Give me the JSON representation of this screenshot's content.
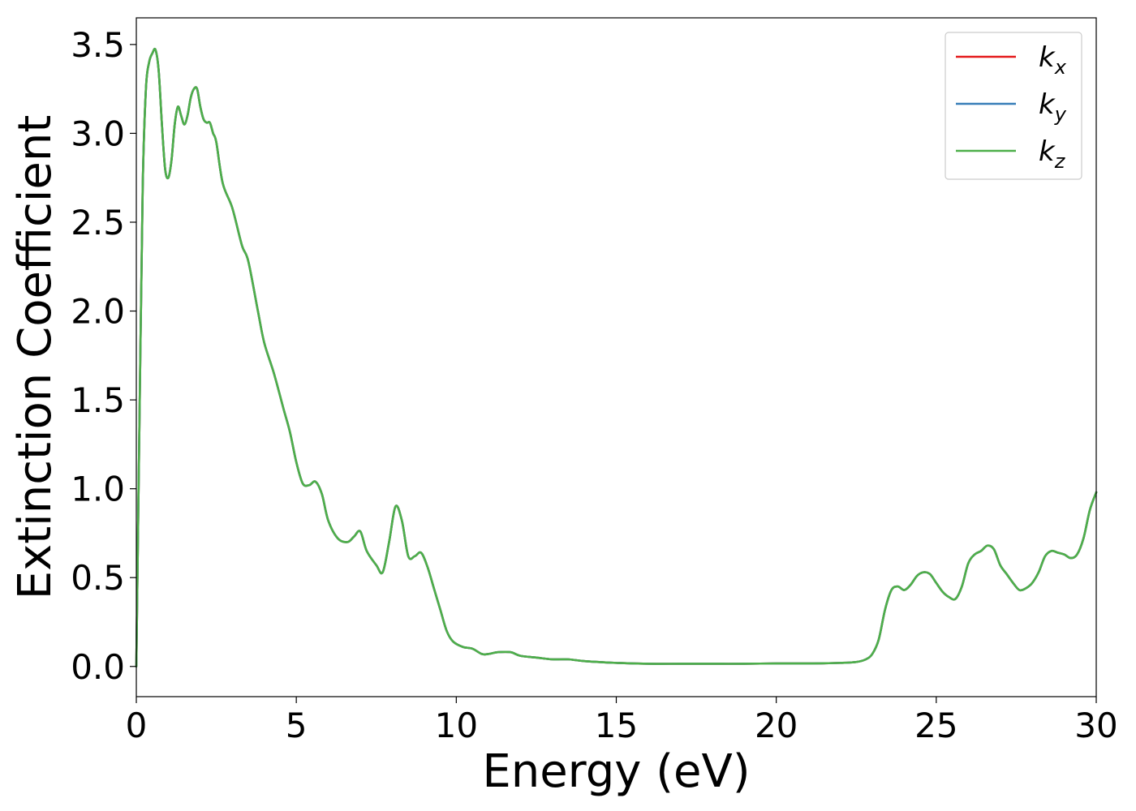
{
  "chart_data": {
    "type": "line",
    "xlabel": "Energy (eV)",
    "ylabel": "Extinction Coefficient",
    "xlim": [
      0,
      30
    ],
    "ylim": [
      -0.17,
      3.65
    ],
    "xticks": [
      0,
      5,
      10,
      15,
      20,
      25,
      30
    ],
    "xtick_labels": [
      "0",
      "5",
      "10",
      "15",
      "20",
      "25",
      "30"
    ],
    "yticks": [
      0.0,
      0.5,
      1.0,
      1.5,
      2.0,
      2.5,
      3.0,
      3.5
    ],
    "ytick_labels": [
      "0.0",
      "0.5",
      "1.0",
      "1.5",
      "2.0",
      "2.5",
      "3.0",
      "3.5"
    ],
    "grid": false,
    "legend_position": "top-right",
    "series": [
      {
        "name": "k",
        "subscript": "x",
        "color": "#e41a1c"
      },
      {
        "name": "k",
        "subscript": "y",
        "color": "#377eb8"
      },
      {
        "name": "k",
        "subscript": "z",
        "color": "#4daf4a"
      }
    ],
    "x": [
      0.0,
      0.1,
      0.2,
      0.3,
      0.4,
      0.5,
      0.6,
      0.7,
      0.8,
      0.9,
      1.0,
      1.1,
      1.2,
      1.3,
      1.4,
      1.5,
      1.6,
      1.7,
      1.8,
      1.9,
      2.0,
      2.1,
      2.2,
      2.3,
      2.4,
      2.5,
      2.7,
      3.0,
      3.3,
      3.5,
      3.8,
      4.0,
      4.3,
      4.6,
      4.8,
      5.0,
      5.2,
      5.4,
      5.6,
      5.8,
      6.0,
      6.3,
      6.6,
      6.8,
      7.0,
      7.2,
      7.5,
      7.7,
      7.9,
      8.1,
      8.3,
      8.5,
      8.7,
      8.9,
      9.1,
      9.3,
      9.5,
      9.7,
      9.9,
      10.2,
      10.5,
      10.8,
      11.0,
      11.3,
      11.7,
      12.0,
      12.5,
      13.0,
      13.5,
      14.0,
      15.0,
      16.0,
      17.0,
      18.0,
      19.0,
      20.0,
      21.0,
      22.0,
      22.5,
      22.8,
      23.0,
      23.2,
      23.4,
      23.6,
      23.8,
      24.0,
      24.2,
      24.4,
      24.6,
      24.8,
      25.0,
      25.2,
      25.4,
      25.6,
      25.8,
      26.0,
      26.2,
      26.4,
      26.6,
      26.8,
      27.0,
      27.2,
      27.4,
      27.6,
      27.8,
      28.0,
      28.2,
      28.4,
      28.6,
      28.8,
      29.0,
      29.2,
      29.4,
      29.6,
      29.8,
      30.0
    ],
    "values": [
      0.0,
      1.4,
      2.7,
      3.25,
      3.4,
      3.45,
      3.47,
      3.35,
      3.05,
      2.8,
      2.75,
      2.85,
      3.05,
      3.15,
      3.1,
      3.05,
      3.1,
      3.2,
      3.25,
      3.25,
      3.15,
      3.08,
      3.06,
      3.06,
      3.0,
      2.95,
      2.72,
      2.58,
      2.37,
      2.28,
      2.0,
      1.82,
      1.65,
      1.45,
      1.32,
      1.15,
      1.03,
      1.02,
      1.04,
      0.97,
      0.82,
      0.72,
      0.7,
      0.73,
      0.76,
      0.65,
      0.57,
      0.53,
      0.7,
      0.9,
      0.82,
      0.62,
      0.62,
      0.64,
      0.56,
      0.44,
      0.32,
      0.2,
      0.14,
      0.11,
      0.1,
      0.07,
      0.07,
      0.08,
      0.08,
      0.06,
      0.05,
      0.04,
      0.04,
      0.03,
      0.02,
      0.015,
      0.015,
      0.015,
      0.015,
      0.017,
      0.017,
      0.02,
      0.025,
      0.04,
      0.07,
      0.15,
      0.32,
      0.43,
      0.45,
      0.43,
      0.46,
      0.51,
      0.53,
      0.52,
      0.47,
      0.42,
      0.39,
      0.38,
      0.45,
      0.58,
      0.63,
      0.65,
      0.68,
      0.66,
      0.57,
      0.52,
      0.47,
      0.43,
      0.44,
      0.47,
      0.53,
      0.62,
      0.65,
      0.64,
      0.63,
      0.61,
      0.63,
      0.72,
      0.88,
      0.98
    ]
  }
}
